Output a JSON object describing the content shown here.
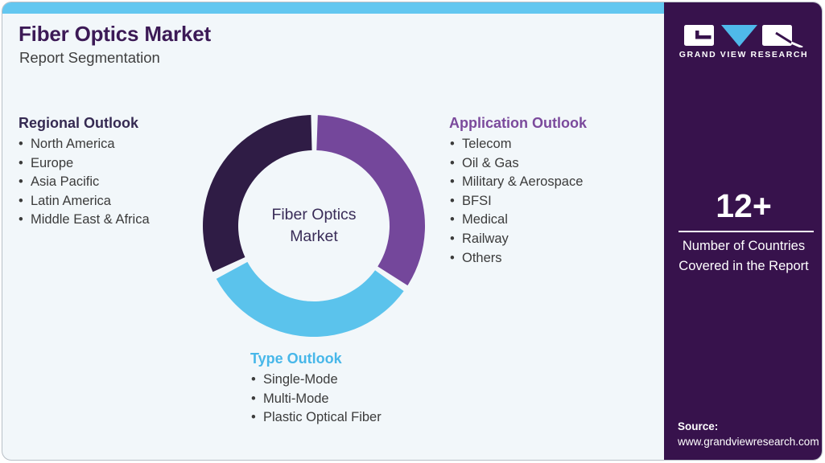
{
  "header": {
    "title": "Fiber Optics Market",
    "subtitle": "Report Segmentation"
  },
  "sections": {
    "regional": {
      "heading": "Regional Outlook",
      "heading_color": "#352A52",
      "items": [
        "North America",
        "Europe",
        "Asia Pacific",
        "Latin America",
        "Middle East & Africa"
      ]
    },
    "application": {
      "heading": "Application Outlook",
      "heading_color": "#7B4A9C",
      "items": [
        "Telecom",
        "Oil & Gas",
        "Military & Aerospace",
        "BFSI",
        "Medical",
        "Railway",
        "Others"
      ]
    },
    "type": {
      "heading": "Type Outlook",
      "heading_color": "#47B7E9",
      "items": [
        "Single-Mode",
        "Multi-Mode",
        "Plastic Optical Fiber"
      ]
    }
  },
  "chart_data": {
    "type": "donut",
    "title": "Fiber Optics Market segmentation donut",
    "center_label": "Fiber Optics Market",
    "center_label_lines": [
      "Fiber Optics",
      "Market"
    ],
    "outer_radius": 138,
    "inner_radius": 94,
    "segments": [
      {
        "name": "Application Outlook",
        "color": "#74479B",
        "start_angle": 2,
        "end_angle": 122.5,
        "share_pct": 33.5
      },
      {
        "name": "Type Outlook",
        "color": "#5BC3EC",
        "start_angle": 126,
        "end_angle": 241.5,
        "share_pct": 32.1
      },
      {
        "name": "Regional Outlook",
        "color": "#2F1C45",
        "start_angle": 245.5,
        "end_angle": 358.5,
        "share_pct": 31.4
      }
    ],
    "legend_position": "none",
    "grid": false
  },
  "sidebar": {
    "logo_text": "GRAND VIEW RESEARCH",
    "stat_value": "12+",
    "stat_caption": "Number of Countries Covered in the Report",
    "source_label": "Source:",
    "source_url": "www.grandviewresearch.com"
  },
  "colors": {
    "card_background": "#F2F7FA",
    "top_bar": "#63C7F0",
    "title": "#3C1A56",
    "body_text": "#3B3B3B",
    "sidebar_background": "#37124C",
    "logo_triangle": "#4FB9EA"
  }
}
